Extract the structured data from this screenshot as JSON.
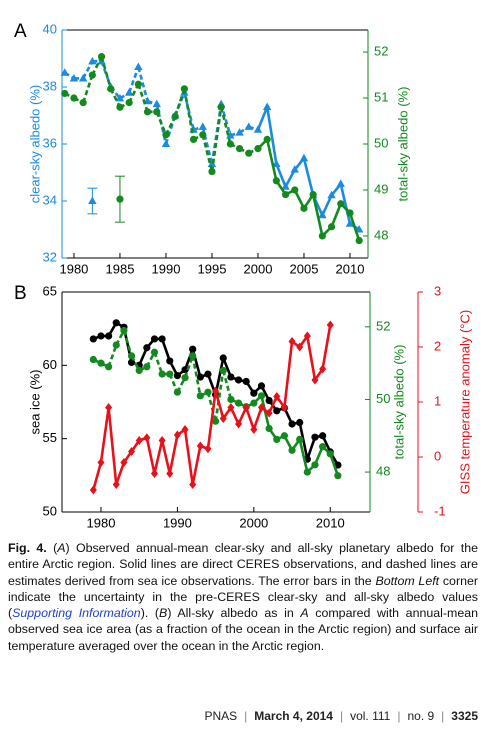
{
  "chart_data": [
    {
      "type": "line",
      "panel_label": "A",
      "xlim": [
        1978.7,
        2011.96
      ],
      "xticks": [
        1980,
        1985,
        1990,
        1995,
        2000,
        2005,
        2010
      ],
      "ylim": [
        32,
        40
      ],
      "yticks": [
        32,
        34,
        36,
        38,
        40
      ],
      "ylabel": "clear-sky albedo (%)",
      "ycolor": "#1a8be0",
      "y2lim": [
        47.52,
        52.48
      ],
      "y2ticks": [
        48,
        49,
        50,
        51,
        52
      ],
      "y2label": "total-sky albedo (%)",
      "y2color": "#138a1e",
      "series": [
        {
          "color": "#1a8be0",
          "axis": "y",
          "marker": "triangle",
          "dashed_before": 2000,
          "x": [
            1979,
            1980,
            1981,
            1982,
            1983,
            1984,
            1985,
            1986,
            1987,
            1988,
            1989,
            1990,
            1991,
            1992,
            1993,
            1994,
            1995,
            1996,
            1997,
            1998,
            1999,
            2000,
            2001,
            2002,
            2003,
            2004,
            2005,
            2006,
            2007,
            2008,
            2009,
            2010,
            2011
          ],
          "values": [
            38.5,
            38.3,
            38.3,
            38.9,
            38.9,
            38.0,
            37.6,
            37.8,
            38.7,
            37.5,
            37.4,
            36.0,
            37.0,
            37.8,
            36.5,
            36.6,
            35.3,
            37.4,
            36.3,
            36.4,
            36.6,
            36.5,
            37.3,
            35.3,
            34.5,
            35.1,
            35.5,
            34.2,
            33.5,
            34.2,
            34.6,
            33.2,
            33.0
          ]
        },
        {
          "color": "#138a1e",
          "axis": "y2",
          "marker": "circle",
          "dashed_before": 2000,
          "x": [
            1979,
            1980,
            1981,
            1982,
            1983,
            1984,
            1985,
            1986,
            1987,
            1988,
            1989,
            1990,
            1991,
            1992,
            1993,
            1994,
            1995,
            1996,
            1997,
            1998,
            1999,
            2000,
            2001,
            2002,
            2003,
            2004,
            2005,
            2006,
            2007,
            2008,
            2009,
            2010,
            2011
          ],
          "values": [
            51.1,
            51.0,
            50.9,
            51.5,
            51.9,
            51.2,
            50.8,
            50.9,
            51.3,
            50.7,
            50.7,
            50.2,
            50.6,
            51.2,
            50.1,
            50.2,
            49.4,
            50.8,
            50.0,
            49.9,
            49.8,
            49.9,
            50.1,
            49.2,
            48.9,
            49.0,
            48.6,
            48.9,
            48.0,
            48.2,
            48.7,
            48.5,
            47.9
          ]
        }
      ],
      "error_bars": [
        {
          "x": 1982,
          "value": 34.0,
          "error": 0.45,
          "axis": "y",
          "color": "#1a8be0",
          "marker": "triangle"
        },
        {
          "x": 1985,
          "value": 48.8,
          "error": 0.5,
          "axis": "y2",
          "color": "#138a1e",
          "marker": "circle"
        }
      ]
    },
    {
      "type": "line",
      "panel_label": "B",
      "xlim": [
        1974.9,
        2015.2
      ],
      "xticks": [
        1980,
        1990,
        2000,
        2010
      ],
      "ylim": [
        50,
        65
      ],
      "yticks": [
        50,
        55,
        60,
        65
      ],
      "ylabel": "sea ice (%)",
      "ycolor": "#000000",
      "y2lim": [
        46.9,
        52.96
      ],
      "y2ticks": [
        48,
        50,
        52
      ],
      "y2label": "total-sky albedo (%)",
      "y2color": "#138a1e",
      "y3lim": [
        -1,
        3
      ],
      "y3ticks": [
        -1,
        0,
        1,
        2,
        3
      ],
      "y3label": "GISS temperature anomaly (°C)",
      "y3color": "#e8101a",
      "series": [
        {
          "color": "#000000",
          "axis": "y",
          "marker": "circle",
          "x": [
            1979,
            1980,
            1981,
            1982,
            1983,
            1984,
            1985,
            1986,
            1987,
            1988,
            1989,
            1990,
            1991,
            1992,
            1993,
            1994,
            1995,
            1996,
            1997,
            1998,
            1999,
            2000,
            2001,
            2002,
            2003,
            2004,
            2005,
            2006,
            2007,
            2008,
            2009,
            2010,
            2011
          ],
          "values": [
            61.8,
            62.0,
            62.0,
            62.9,
            62.6,
            60.2,
            60.0,
            61.2,
            61.8,
            61.8,
            60.3,
            59.3,
            59.7,
            61.1,
            59.2,
            59.4,
            58.0,
            60.5,
            59.2,
            59.0,
            58.9,
            58.1,
            58.6,
            57.6,
            56.9,
            57.1,
            56.0,
            56.1,
            53.6,
            55.1,
            55.2,
            54.1,
            53.2
          ]
        },
        {
          "color": "#138a1e",
          "axis": "y2",
          "marker": "circle",
          "dashed_before": 2000,
          "x": [
            1979,
            1980,
            1981,
            1982,
            1983,
            1984,
            1985,
            1986,
            1987,
            1988,
            1989,
            1990,
            1991,
            1992,
            1993,
            1994,
            1995,
            1996,
            1997,
            1998,
            1999,
            2000,
            2001,
            2002,
            2003,
            2004,
            2005,
            2006,
            2007,
            2008,
            2009,
            2010,
            2011
          ],
          "values": [
            51.1,
            51.0,
            50.9,
            51.5,
            51.9,
            51.2,
            50.8,
            50.9,
            51.3,
            50.7,
            50.7,
            50.2,
            50.6,
            51.2,
            50.1,
            50.2,
            49.4,
            50.8,
            50.0,
            49.9,
            49.8,
            49.9,
            50.1,
            49.2,
            48.9,
            49.0,
            48.6,
            48.9,
            48.0,
            48.2,
            48.7,
            48.5,
            47.9
          ]
        },
        {
          "color": "#e8101a",
          "axis": "y3",
          "marker": "diamond",
          "x": [
            1979,
            1980,
            1981,
            1982,
            1983,
            1984,
            1985,
            1986,
            1987,
            1988,
            1989,
            1990,
            1991,
            1992,
            1993,
            1994,
            1995,
            1996,
            1997,
            1998,
            1999,
            2000,
            2001,
            2002,
            2003,
            2004,
            2005,
            2006,
            2007,
            2008,
            2009,
            2010
          ],
          "values": [
            -0.6,
            -0.1,
            0.9,
            -0.5,
            -0.1,
            0.1,
            0.3,
            0.35,
            -0.3,
            0.3,
            -0.3,
            0.4,
            0.5,
            -0.5,
            0.2,
            0.15,
            1.2,
            0.7,
            0.9,
            0.6,
            0.9,
            0.5,
            0.9,
            0.8,
            1.1,
            0.9,
            2.1,
            2.0,
            2.2,
            1.4,
            1.6,
            2.4
          ]
        }
      ]
    }
  ],
  "caption": [
    {
      "text": "Fig. 4.",
      "style": "bold"
    },
    {
      "text": " (",
      "style": "normal"
    },
    {
      "text": "A",
      "style": "italic"
    },
    {
      "text": ") Observed annual-mean clear-sky and all-sky planetary albedo for the entire Arctic region. Solid lines are direct CERES observations, and dashed lines are estimates derived from sea ice observations. The error bars in the ",
      "style": "normal"
    },
    {
      "text": "Bottom Left",
      "style": "italic"
    },
    {
      "text": " corner indicate the uncertainty in the pre-CERES clear-sky and all-sky albedo values (",
      "style": "normal"
    },
    {
      "text": "Supporting Information",
      "style": "link"
    },
    {
      "text": "). (",
      "style": "normal"
    },
    {
      "text": "B",
      "style": "italic"
    },
    {
      "text": ") All-sky albedo as in ",
      "style": "normal"
    },
    {
      "text": "A",
      "style": "italic"
    },
    {
      "text": " compared with annual-mean observed sea ice area (as a fraction of the ocean in the Arctic region) and surface air temperature averaged over the ocean in the Arctic region.",
      "style": "normal"
    }
  ],
  "footer": {
    "journal": "PNAS",
    "date": "March 4, 2014",
    "volume": "vol. 111",
    "issue": "no. 9",
    "page": "3325"
  }
}
